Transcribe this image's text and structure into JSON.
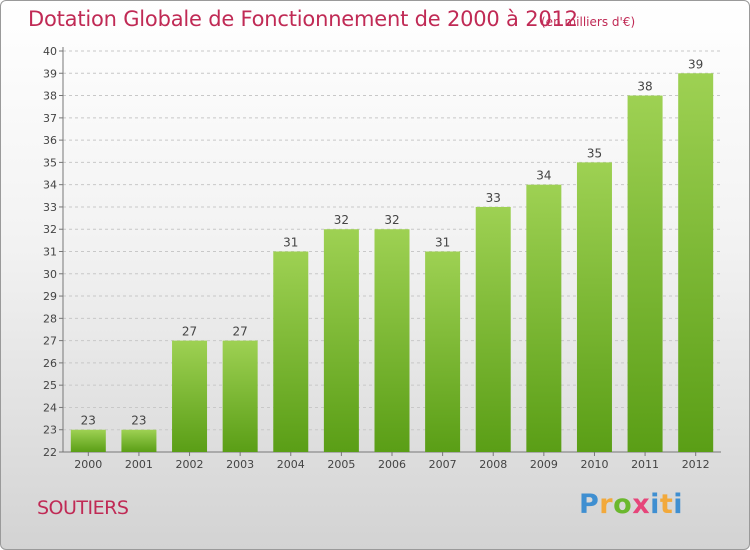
{
  "title": "Dotation Globale de Fonctionnement de 2000 à 2012",
  "subtitle": "(en milliers d'€)",
  "commune": "SOUTIERS",
  "logo": {
    "letters": [
      "P",
      "r",
      "o",
      "x",
      "i",
      "t",
      "i"
    ]
  },
  "colors": {
    "accent": "#c02a55",
    "bar_top": "#9ed153",
    "bar_bottom": "#5a9e16"
  },
  "chart_data": {
    "type": "bar",
    "title": "Dotation Globale de Fonctionnement de 2000 à 2012",
    "subtitle": "(en milliers d'€)",
    "xlabel": "",
    "ylabel": "",
    "categories": [
      "2000",
      "2001",
      "2002",
      "2003",
      "2004",
      "2005",
      "2006",
      "2007",
      "2008",
      "2009",
      "2010",
      "2011",
      "2012"
    ],
    "values": [
      23,
      23,
      27,
      27,
      31,
      32,
      32,
      31,
      33,
      34,
      35,
      38,
      39
    ],
    "ylim": [
      22,
      40
    ],
    "yticks": [
      22,
      23,
      24,
      25,
      26,
      27,
      28,
      29,
      30,
      31,
      32,
      33,
      34,
      35,
      36,
      37,
      38,
      39,
      40
    ],
    "grid": true,
    "legend": "none"
  }
}
